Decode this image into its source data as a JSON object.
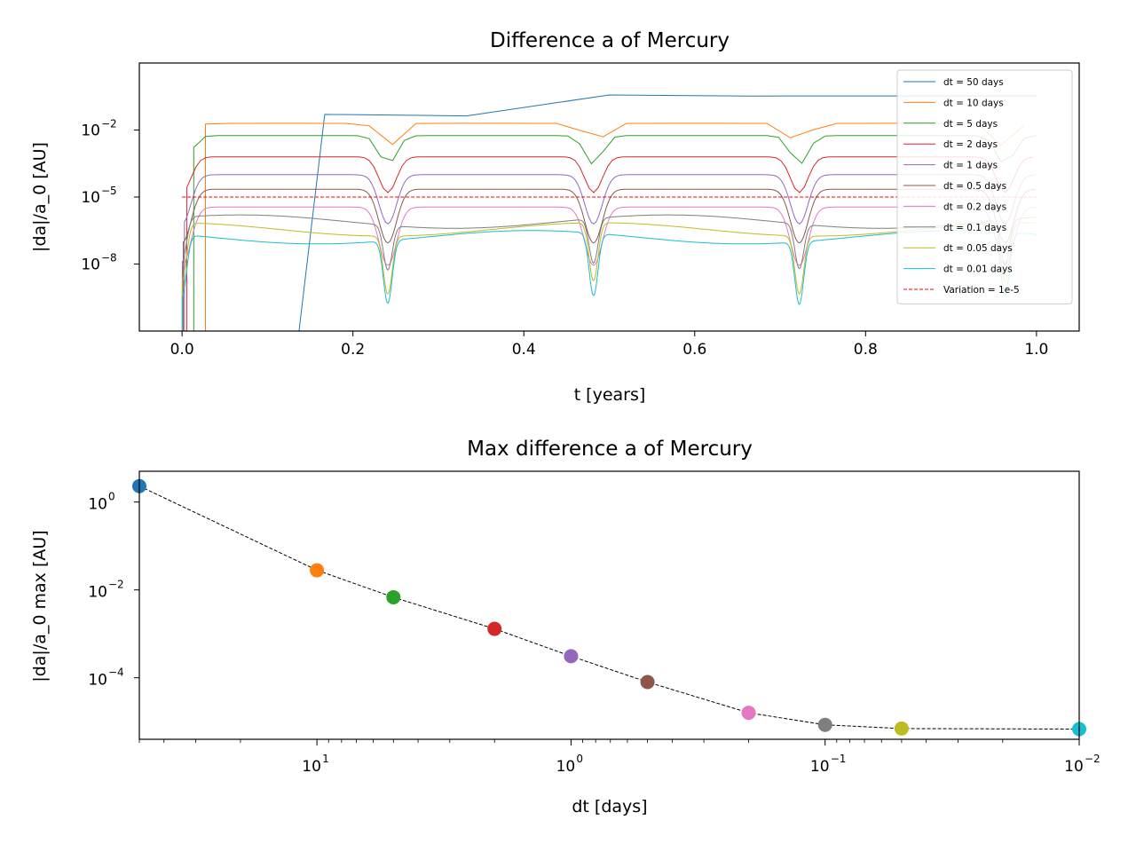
{
  "chart_data": [
    {
      "type": "line",
      "title": "Difference a of Mercury",
      "xlabel": "t [years]",
      "ylabel": "|da|/a_0 [AU]",
      "xlim": [
        -0.05,
        1.05
      ],
      "ylim_log10": [
        -11,
        1
      ],
      "yscale": "log",
      "grid": false,
      "legend_position": "right",
      "xticks": [
        0.0,
        0.2,
        0.4,
        0.6,
        0.8,
        1.0
      ],
      "xtick_labels": [
        "0.0",
        "0.2",
        "0.4",
        "0.6",
        "0.8",
        "1.0"
      ],
      "yticks_log10": [
        -2,
        -5,
        -8
      ],
      "ytick_labels": [
        "10",
        "10",
        "10"
      ],
      "ytick_exponents": [
        "−2",
        "−5",
        "−8"
      ],
      "reference_line": {
        "name": "Variation = 1e-5",
        "value": 1e-05,
        "color": "#ff0000",
        "style": "dashed"
      },
      "series": [
        {
          "name": "dt = 50 days",
          "dt_days": 50,
          "color": "#1f77b4"
        },
        {
          "name": "dt = 10 days",
          "dt_days": 10,
          "color": "#ff7f0e"
        },
        {
          "name": "dt = 5 days",
          "dt_days": 5,
          "color": "#2ca02c"
        },
        {
          "name": "dt = 2 days",
          "dt_days": 2,
          "color": "#d62728"
        },
        {
          "name": "dt = 1 days",
          "dt_days": 1,
          "color": "#9467bd"
        },
        {
          "name": "dt = 0.5 days",
          "dt_days": 0.5,
          "color": "#8c564b"
        },
        {
          "name": "dt = 0.2 days",
          "dt_days": 0.2,
          "color": "#e377c2"
        },
        {
          "name": "dt = 0.1 days",
          "dt_days": 0.1,
          "color": "#7f7f7f"
        },
        {
          "name": "dt = 0.05 days",
          "dt_days": 0.05,
          "color": "#bcbd22"
        },
        {
          "name": "dt = 0.01 days",
          "dt_days": 0.01,
          "color": "#17becf"
        }
      ]
    },
    {
      "type": "scatter",
      "title": "Max difference a of Mercury",
      "xlabel": "dt [days]",
      "ylabel": "|da|/a_0 max [AU]",
      "xscale": "log",
      "yscale": "log",
      "x_inverted": true,
      "xlim": [
        50,
        0.01
      ],
      "ylim_log10": [
        -5.4,
        0.7
      ],
      "grid": false,
      "xticks_log10": [
        1,
        0,
        -1,
        -2
      ],
      "xtick_labels": [
        "10",
        "10",
        "10",
        "10"
      ],
      "xtick_exponents": [
        "1",
        "0",
        "−1",
        "−2"
      ],
      "yticks_log10": [
        0,
        -2,
        -4
      ],
      "ytick_labels": [
        "10",
        "10",
        "10"
      ],
      "ytick_exponents": [
        "0",
        "−2",
        "−4"
      ],
      "line_style": "dashed",
      "line_color": "#000000",
      "x": [
        50,
        10,
        5,
        2,
        1,
        0.5,
        0.2,
        0.1,
        0.05,
        0.01
      ],
      "y": [
        2.3,
        0.028,
        0.0068,
        0.0013,
        0.00031,
        8e-05,
        1.6e-05,
        8.5e-06,
        7e-06,
        6.8e-06
      ],
      "colors": [
        "#1f77b4",
        "#ff7f0e",
        "#2ca02c",
        "#d62728",
        "#9467bd",
        "#8c564b",
        "#e377c2",
        "#7f7f7f",
        "#bcbd22",
        "#17becf"
      ]
    }
  ]
}
